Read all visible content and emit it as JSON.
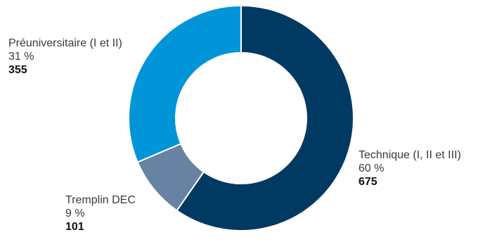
{
  "chart_data": {
    "type": "donut",
    "start_angle": 0,
    "direction": "clockwise",
    "slices": [
      {
        "name": "Technique (I, II et III)",
        "percent_label": "60 %",
        "value": 675,
        "color": "#003a63"
      },
      {
        "name": "Tremplin DEC",
        "percent_label": "9 %",
        "value": 101,
        "color": "#6882a3"
      },
      {
        "name": "Préuniversitaire (I et II)",
        "percent_label": "31 %",
        "value": 355,
        "color": "#0095d9"
      }
    ]
  }
}
